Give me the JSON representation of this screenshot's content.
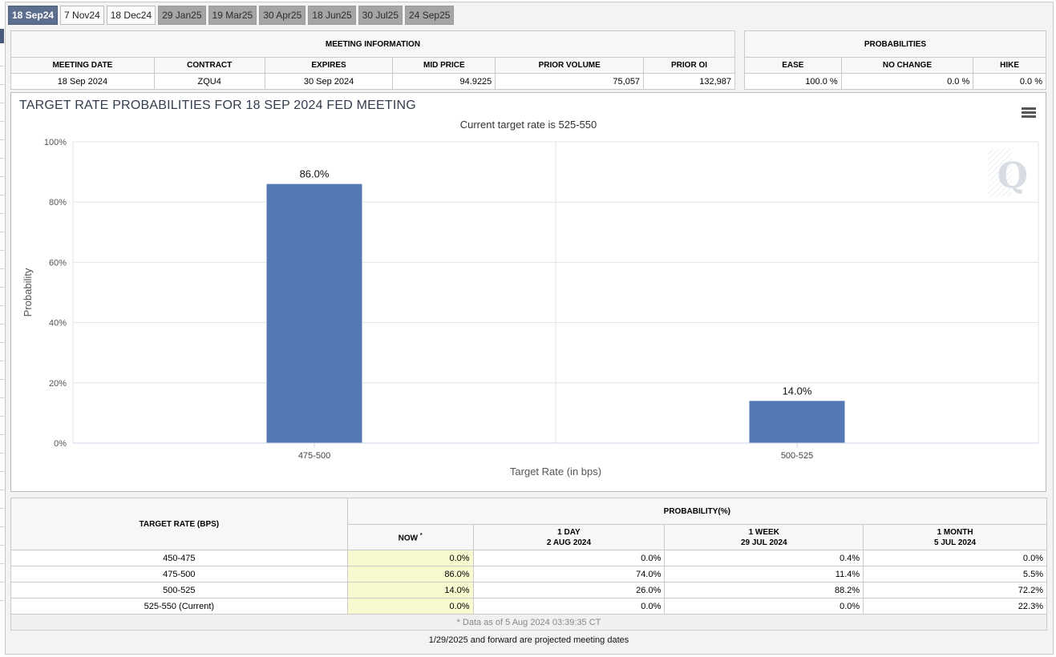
{
  "tabs": [
    {
      "label": "18 Sep24",
      "style": "active"
    },
    {
      "label": "7 Nov24",
      "style": "light"
    },
    {
      "label": "18 Dec24",
      "style": "light"
    },
    {
      "label": "29 Jan25",
      "style": "dark"
    },
    {
      "label": "19 Mar25",
      "style": "dark"
    },
    {
      "label": "30 Apr25",
      "style": "dark"
    },
    {
      "label": "18 Jun25",
      "style": "dark"
    },
    {
      "label": "30 Jul25",
      "style": "dark"
    },
    {
      "label": "24 Sep25",
      "style": "dark"
    }
  ],
  "meeting_info": {
    "title": "MEETING INFORMATION",
    "headers": [
      "MEETING DATE",
      "CONTRACT",
      "EXPIRES",
      "MID PRICE",
      "PRIOR VOLUME",
      "PRIOR OI"
    ],
    "values": [
      "18 Sep 2024",
      "ZQU4",
      "30 Sep 2024",
      "94.9225",
      "75,057",
      "132,987"
    ]
  },
  "probabilities": {
    "title": "PROBABILITIES",
    "headers": [
      "EASE",
      "NO CHANGE",
      "HIKE"
    ],
    "values": [
      "100.0 %",
      "0.0 %",
      "0.0 %"
    ]
  },
  "chart_data": {
    "type": "bar",
    "title": "TARGET RATE PROBABILITIES FOR 18 SEP 2024 FED MEETING",
    "subtitle": "Current target rate is 525-550",
    "categories": [
      "475-500",
      "500-525"
    ],
    "values": [
      86.0,
      14.0
    ],
    "data_labels": [
      "86.0%",
      "14.0%"
    ],
    "xlabel": "Target Rate (in bps)",
    "ylabel": "Probability",
    "ylim": [
      0,
      100
    ],
    "yticks": [
      "0%",
      "20%",
      "40%",
      "60%",
      "80%",
      "100%"
    ],
    "grid": true,
    "bar_color": "#5479b4"
  },
  "chart_menu_icon": "hamburger-menu-icon",
  "rate_table": {
    "col_target": "TARGET RATE (BPS)",
    "col_prob": "PROBABILITY(%)",
    "sub_now": "NOW",
    "sub_now_mark": "*",
    "sub_1day": "1 DAY",
    "sub_1day_date": "2 AUG 2024",
    "sub_1week": "1 WEEK",
    "sub_1week_date": "29 JUL 2024",
    "sub_1month": "1 MONTH",
    "sub_1month_date": "5 JUL 2024",
    "rows": [
      {
        "rate": "450-475",
        "now": "0.0%",
        "day": "0.0%",
        "week": "0.4%",
        "month": "0.0%"
      },
      {
        "rate": "475-500",
        "now": "86.0%",
        "day": "74.0%",
        "week": "11.4%",
        "month": "5.5%"
      },
      {
        "rate": "500-525",
        "now": "14.0%",
        "day": "26.0%",
        "week": "88.2%",
        "month": "72.2%"
      },
      {
        "rate": "525-550 (Current)",
        "now": "0.0%",
        "day": "0.0%",
        "week": "0.0%",
        "month": "22.3%"
      }
    ],
    "footnote": "* Data as of 5 Aug 2024 03:39:35 CT"
  },
  "bottom_note": "1/29/2025 and forward are projected meeting dates"
}
